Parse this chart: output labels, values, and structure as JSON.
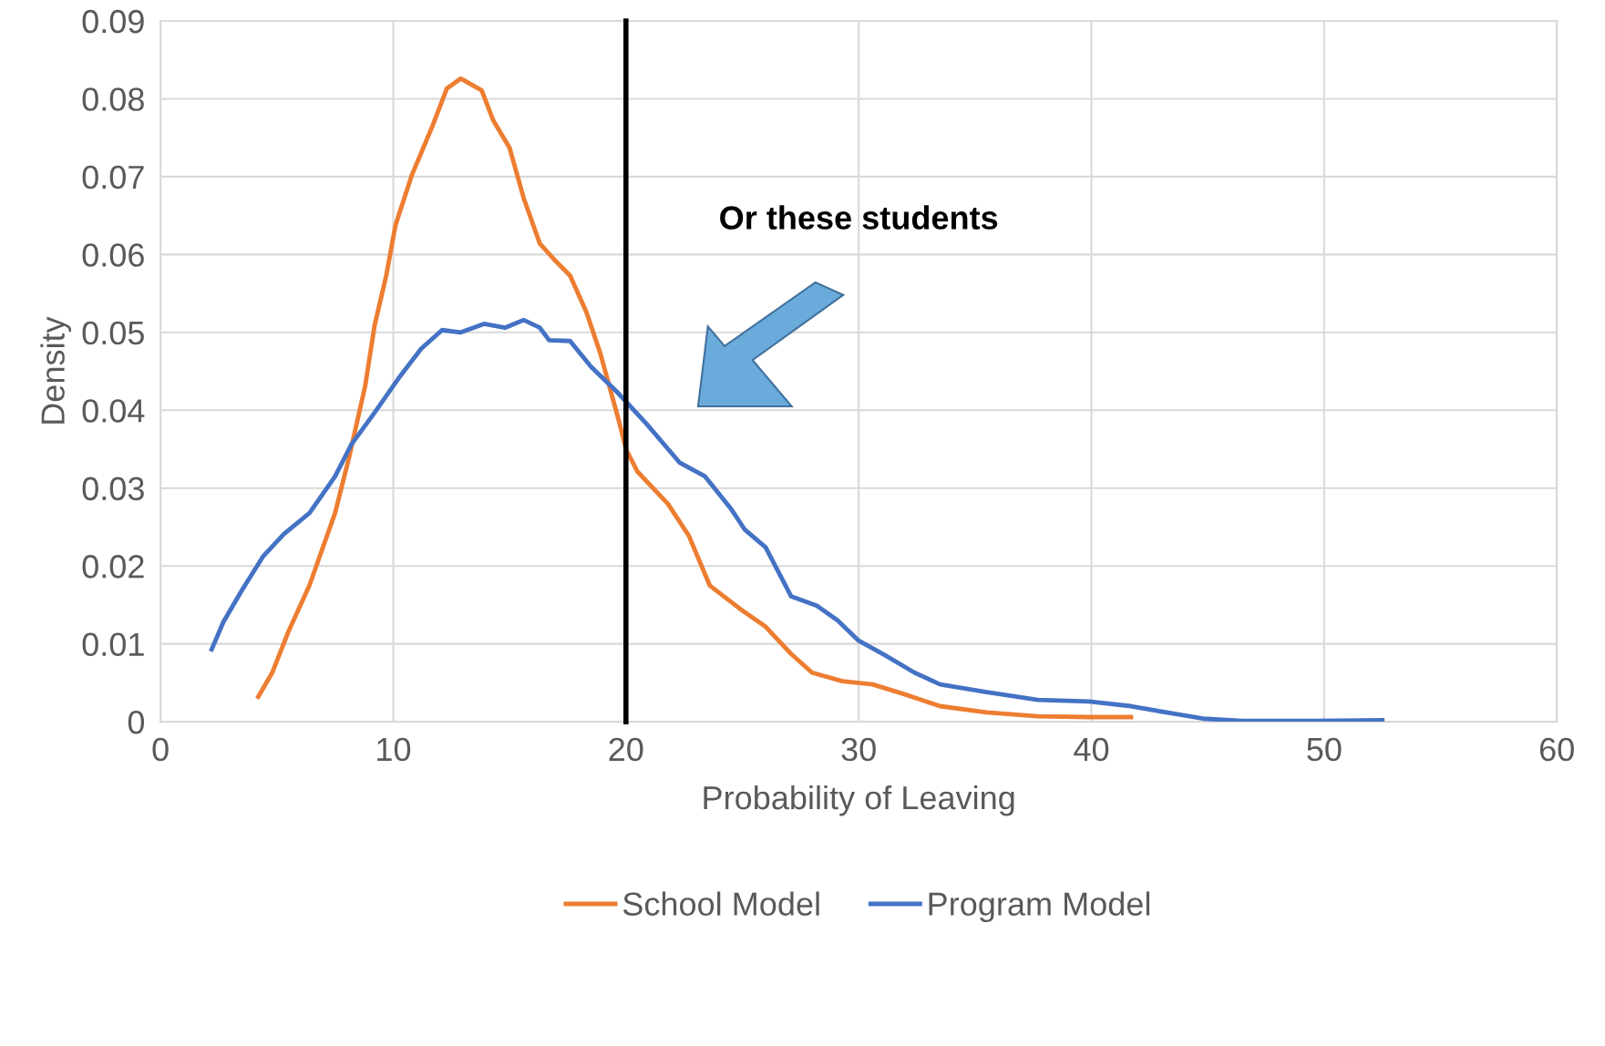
{
  "chart_data": {
    "type": "line",
    "xlabel": "Probability of Leaving",
    "ylabel": "Density",
    "xlim": [
      0,
      60
    ],
    "xticks": [
      0,
      10,
      20,
      30,
      40,
      50,
      60
    ],
    "ylim": [
      0,
      0.09
    ],
    "yticks": [
      0,
      0.01,
      0.02,
      0.03,
      0.04,
      0.05,
      0.06,
      0.07,
      0.08,
      0.09
    ],
    "grid": true,
    "legend": "bottom",
    "marker": "none",
    "line_style": "solid",
    "ref_lines": [
      {
        "axis": "x",
        "value": 20,
        "color": "#000000"
      }
    ],
    "annotations": [
      "Or these students"
    ],
    "series": [
      {
        "name": "School Model",
        "color": "#ed7d31",
        "x": [
          4.2,
          4.8,
          5.5,
          6.4,
          7.5,
          8.1,
          8.8,
          9.2,
          9.7,
          10.1,
          10.8,
          11.7,
          12.3,
          12.9,
          13.8,
          14.3,
          15.0,
          15.6,
          16.3,
          17.0,
          17.6,
          18.3,
          18.9,
          19.7,
          20.0,
          20.5,
          21.8,
          22.7,
          23.6,
          24.9,
          26.0,
          27.1,
          28.0,
          29.3,
          30.6,
          31.9,
          33.5,
          35.5,
          37.7,
          39.9,
          41.7
        ],
        "values": [
          0.0032,
          0.0063,
          0.0116,
          0.0175,
          0.0268,
          0.0339,
          0.0432,
          0.0509,
          0.0573,
          0.0638,
          0.0702,
          0.0766,
          0.0813,
          0.0826,
          0.0811,
          0.0772,
          0.0737,
          0.0673,
          0.0614,
          0.0591,
          0.0573,
          0.0526,
          0.0473,
          0.0386,
          0.035,
          0.0321,
          0.028,
          0.0239,
          0.0175,
          0.0145,
          0.0122,
          0.0087,
          0.0063,
          0.0052,
          0.0048,
          0.0036,
          0.002,
          0.0012,
          0.0007,
          0.0006,
          0.0006
        ]
      },
      {
        "name": "Program Model",
        "color": "#4472c4",
        "x": [
          2.2,
          2.7,
          3.5,
          4.4,
          5.3,
          6.4,
          7.5,
          8.2,
          9.2,
          10.3,
          11.2,
          12.1,
          12.9,
          13.9,
          14.8,
          15.6,
          16.3,
          16.7,
          17.6,
          18.5,
          19.6,
          20.9,
          22.3,
          23.4,
          24.5,
          25.1,
          26.0,
          27.1,
          28.2,
          29.1,
          30.0,
          31.1,
          32.4,
          33.5,
          35.5,
          37.7,
          39.9,
          41.7,
          43.4,
          44.8,
          46.5,
          49.6,
          52.5
        ],
        "values": [
          0.0093,
          0.0128,
          0.0169,
          0.0212,
          0.0241,
          0.0268,
          0.0315,
          0.0356,
          0.0397,
          0.0444,
          0.0479,
          0.0503,
          0.05,
          0.0511,
          0.0506,
          0.0516,
          0.0506,
          0.049,
          0.0489,
          0.0456,
          0.0424,
          0.0382,
          0.0333,
          0.0315,
          0.0274,
          0.0247,
          0.0224,
          0.0161,
          0.0149,
          0.013,
          0.0104,
          0.0086,
          0.0063,
          0.0048,
          0.0038,
          0.0028,
          0.0026,
          0.002,
          0.0011,
          0.0004,
          0.0001,
          0.0001,
          0.0002
        ]
      }
    ]
  }
}
